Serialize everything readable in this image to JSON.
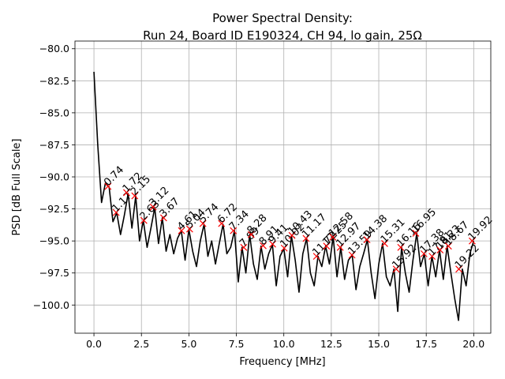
{
  "chart_data": {
    "type": "line",
    "title": "Power Spectral Density:",
    "subtitle": "Run 24, Board ID E190324, CH 94, lo gain, 25Ω",
    "x_label": "Frequency [MHz]",
    "y_label": "PSD [dB Full Scale]",
    "grid": true,
    "xlim": [
      -1.0,
      20.9
    ],
    "ylim": [
      -102.2,
      -79.4
    ],
    "xticks": [
      {
        "value": 0,
        "label": "0.0"
      },
      2.5,
      {
        "value": 5,
        "label": "5.0"
      },
      7.5,
      {
        "value": 10,
        "label": "10.0"
      },
      12.5,
      {
        "value": 15,
        "label": "15.0"
      },
      17.5,
      {
        "value": 20,
        "label": "20.0"
      }
    ],
    "yticks": [
      {
        "value": -80,
        "label": "−80.0"
      },
      {
        "value": -82.5,
        "label": "−82.5"
      },
      {
        "value": -85,
        "label": "−85.0"
      },
      {
        "value": -87.5,
        "label": "−87.5"
      },
      {
        "value": -90,
        "label": "−90.0"
      },
      {
        "value": -92.5,
        "label": "−92.5"
      },
      {
        "value": -95,
        "label": "−95.0"
      },
      {
        "value": -97.5,
        "label": "−97.5"
      },
      {
        "value": -100,
        "label": "−100.0"
      }
    ],
    "x": [
      0.0,
      0.2,
      0.4,
      0.6,
      0.8,
      1.0,
      1.2,
      1.4,
      1.6,
      1.8,
      2.0,
      2.2,
      2.4,
      2.6,
      2.8,
      3.0,
      3.2,
      3.4,
      3.6,
      3.8,
      4.0,
      4.2,
      4.4,
      4.6,
      4.8,
      5.0,
      5.2,
      5.4,
      5.6,
      5.8,
      6.0,
      6.2,
      6.4,
      6.6,
      6.8,
      7.0,
      7.2,
      7.4,
      7.6,
      7.8,
      8.0,
      8.2,
      8.4,
      8.6,
      8.8,
      9.0,
      9.2,
      9.4,
      9.6,
      9.8,
      10.0,
      10.2,
      10.4,
      10.6,
      10.8,
      11.0,
      11.2,
      11.4,
      11.6,
      11.8,
      12.0,
      12.2,
      12.4,
      12.6,
      12.8,
      13.0,
      13.2,
      13.4,
      13.6,
      13.8,
      14.0,
      14.2,
      14.4,
      14.6,
      14.8,
      15.0,
      15.2,
      15.4,
      15.6,
      15.8,
      16.0,
      16.2,
      16.4,
      16.6,
      16.8,
      17.0,
      17.2,
      17.4,
      17.6,
      17.8,
      18.0,
      18.2,
      18.4,
      18.6,
      18.8,
      19.0,
      19.2,
      19.4,
      19.6,
      19.8,
      20.0
    ],
    "series": [
      {
        "color": "#000000",
        "values": [
          -81.8,
          -87.5,
          -92.0,
          -90.5,
          -90.8,
          -93.5,
          -92.8,
          -94.5,
          -93.0,
          -91.3,
          -94.0,
          -91.5,
          -95.0,
          -93.4,
          -95.5,
          -94.0,
          -92.4,
          -95.2,
          -93.2,
          -95.8,
          -94.5,
          -96.0,
          -94.8,
          -94.2,
          -96.5,
          -94.1,
          -95.8,
          -97.0,
          -95.0,
          -93.7,
          -96.2,
          -95.0,
          -96.8,
          -95.2,
          -93.7,
          -96.0,
          -95.5,
          -94.2,
          -98.2,
          -95.5,
          -97.5,
          -94.5,
          -96.8,
          -98.0,
          -95.4,
          -97.2,
          -96.0,
          -95.3,
          -98.5,
          -96.2,
          -95.6,
          -97.8,
          -94.6,
          -96.5,
          -99.0,
          -96.0,
          -94.8,
          -97.5,
          -98.5,
          -96.2,
          -97.0,
          -95.4,
          -96.8,
          -94.7,
          -97.8,
          -95.5,
          -98.0,
          -96.5,
          -96.1,
          -98.8,
          -97.0,
          -96.0,
          -94.9,
          -97.5,
          -99.5,
          -96.8,
          -95.2,
          -97.8,
          -98.5,
          -97.2,
          -100.5,
          -95.5,
          -97.5,
          -99.0,
          -96.5,
          -94.4,
          -97.0,
          -96.0,
          -98.5,
          -96.2,
          -97.8,
          -95.7,
          -98.0,
          -95.4,
          -97.5,
          -99.5,
          -101.2,
          -97.2,
          -98.5,
          -96.0,
          -95.0
        ]
      }
    ],
    "markers": {
      "color": "#ff0000",
      "x": [
        0.74,
        1.17,
        1.72,
        2.15,
        2.63,
        3.12,
        3.67,
        4.61,
        5.04,
        5.74,
        6.72,
        7.34,
        7.89,
        8.28,
        8.91,
        9.41,
        10.02,
        10.43,
        11.17,
        11.72,
        12.25,
        12.58,
        12.97,
        13.59,
        14.38,
        15.31,
        15.92,
        16.16,
        16.95,
        17.38,
        17.81,
        18.23,
        18.67,
        19.22,
        19.92
      ],
      "values": [
        -90.74,
        -92.78,
        -91.23,
        -91.48,
        -93.4,
        -92.35,
        -93.2,
        -94.2,
        -94.07,
        -93.64,
        -93.64,
        -94.2,
        -95.5,
        -94.5,
        -95.37,
        -95.25,
        -95.56,
        -94.57,
        -94.8,
        -96.2,
        -95.4,
        -94.7,
        -95.5,
        -96.1,
        -94.9,
        -95.2,
        -97.2,
        -95.5,
        -94.4,
        -96.0,
        -96.2,
        -95.7,
        -95.4,
        -97.2,
        -95.0
      ]
    }
  }
}
